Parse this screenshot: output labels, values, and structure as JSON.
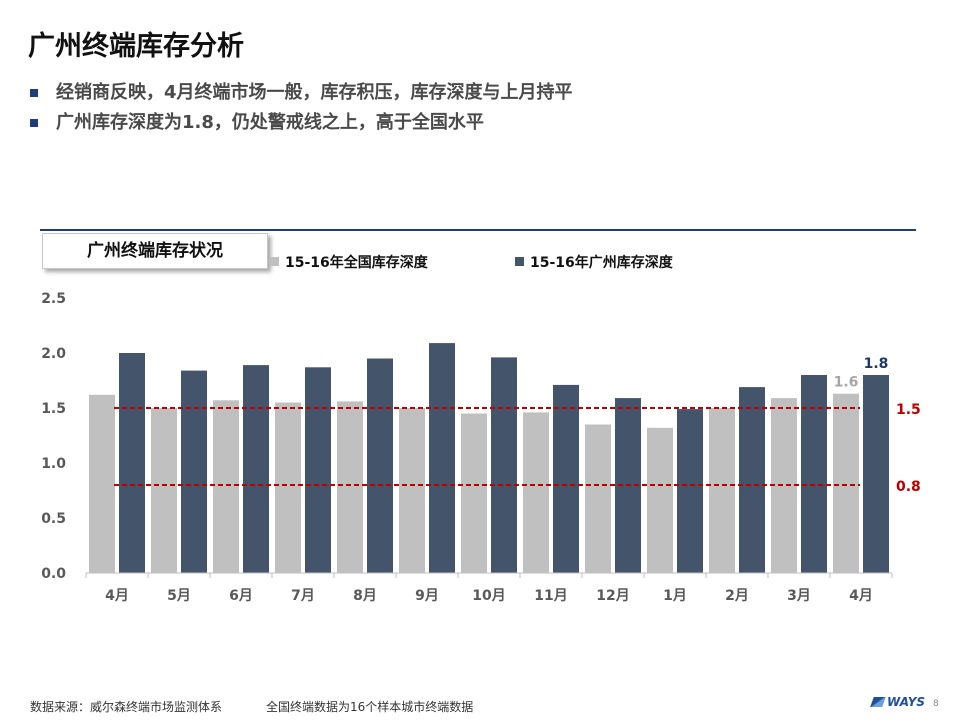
{
  "title": "广州终端库存分析",
  "bullets": [
    "经销商反映，4月终端市场一般，库存积压，库存深度与上月持平",
    "广州库存深度为1.8，仍处警戒线之上，高于全国水平"
  ],
  "colors": {
    "national": "#c0c0c0",
    "guangzhou": "#44546a",
    "threshold": "#c00000",
    "accent": "#1f3d7a"
  },
  "chart_data": {
    "type": "bar",
    "title": "广州终端库存状况",
    "categories": [
      "4月",
      "5月",
      "6月",
      "7月",
      "8月",
      "9月",
      "10月",
      "11月",
      "12月",
      "1月",
      "2月",
      "3月",
      "4月"
    ],
    "series": [
      {
        "name": "15-16年全国库存深度",
        "values": [
          1.62,
          1.5,
          1.57,
          1.55,
          1.56,
          1.5,
          1.45,
          1.46,
          1.35,
          1.32,
          1.5,
          1.59,
          1.63
        ]
      },
      {
        "name": "15-16年广州库存深度",
        "values": [
          2.0,
          1.84,
          1.89,
          1.87,
          1.95,
          2.09,
          1.96,
          1.71,
          1.59,
          1.49,
          1.69,
          1.8,
          1.8
        ]
      }
    ],
    "ylim": [
      0,
      2.5
    ],
    "yticks": [
      "0.0",
      "0.5",
      "1.0",
      "1.5",
      "2.0",
      "2.5"
    ],
    "reference_lines": [
      {
        "value": 1.5,
        "label": "1.5"
      },
      {
        "value": 0.8,
        "label": "0.8"
      }
    ],
    "data_labels": [
      {
        "series": 0,
        "index": 12,
        "text": "1.6"
      },
      {
        "series": 1,
        "index": 12,
        "text": "1.8"
      }
    ],
    "legend_position": "top",
    "grid": false
  },
  "footer": {
    "source": "数据来源：威尔森终端市场监测体系",
    "note": "全国终端数据为16个样本城市终端数据",
    "logo": "WAYS",
    "page": "8"
  }
}
